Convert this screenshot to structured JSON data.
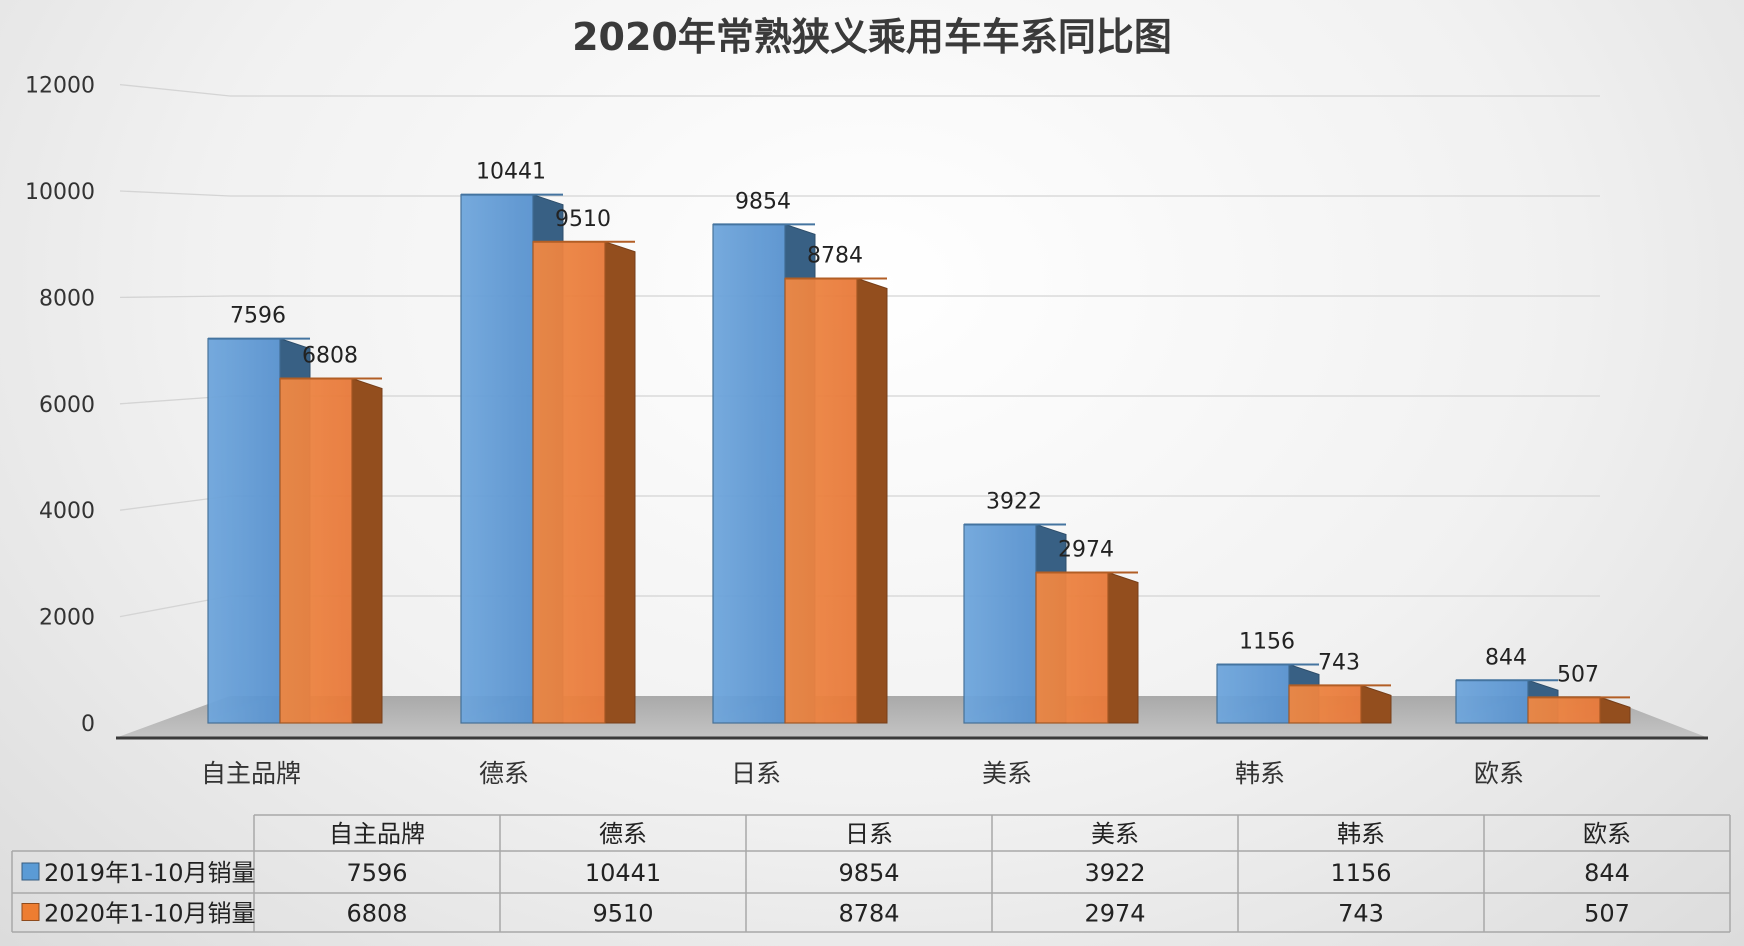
{
  "chart_data": {
    "type": "bar",
    "title": "2020年常熟狭义乘用车车系同比图",
    "categories": [
      "自主品牌",
      "德系",
      "日系",
      "美系",
      "韩系",
      "欧系"
    ],
    "series": [
      {
        "name": "2019年1-10月销量",
        "values": [
          7596,
          10441,
          9854,
          3922,
          1156,
          844
        ],
        "color": "#5b9bd5"
      },
      {
        "name": "2020年1-10月销量",
        "values": [
          6808,
          9510,
          8784,
          2974,
          743,
          507
        ],
        "color": "#ed7d31"
      }
    ],
    "yticks": [
      "0",
      "2000",
      "4000",
      "6000",
      "8000",
      "10000",
      "12000"
    ],
    "ylim": [
      0,
      12000
    ],
    "grid": true,
    "legend": "data-table-below",
    "bar_style": "3d-column"
  }
}
